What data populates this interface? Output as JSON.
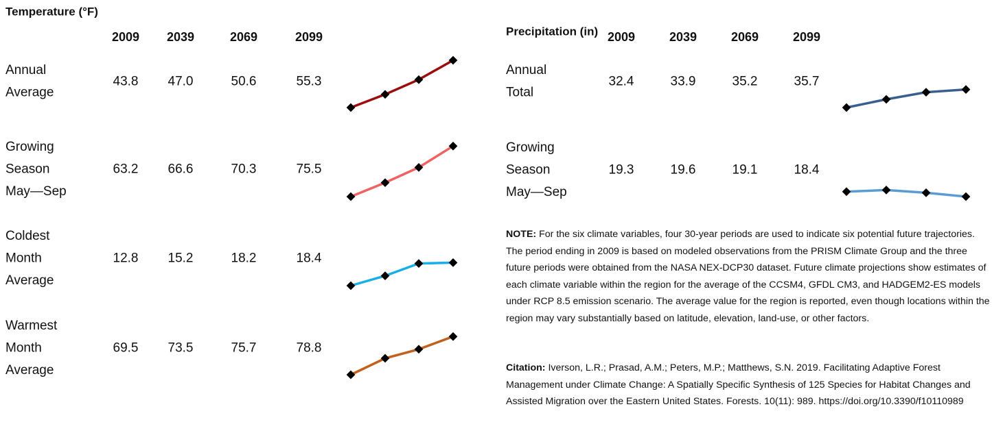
{
  "panels": [
    {
      "title": "Temperature (°F)",
      "years": [
        "2009",
        "2039",
        "2069",
        "2099"
      ],
      "rows": [
        {
          "label": [
            "Annual",
            "Average"
          ],
          "values": [
            43.8,
            47.0,
            50.6,
            55.3
          ],
          "value_labels": [
            "43.8",
            "47.0",
            "50.6",
            "55.3"
          ],
          "color": "#9b0d0d"
        },
        {
          "label": [
            "Growing",
            "Season",
            "May—Sep"
          ],
          "values": [
            63.2,
            66.6,
            70.3,
            75.5
          ],
          "value_labels": [
            "63.2",
            "66.6",
            "70.3",
            "75.5"
          ],
          "color": "#f06262"
        },
        {
          "label": [
            "Coldest",
            "Month",
            "Average"
          ],
          "values": [
            12.8,
            15.2,
            18.2,
            18.4
          ],
          "value_labels": [
            "12.8",
            "15.2",
            "18.2",
            "18.4"
          ],
          "color": "#1aaee6"
        },
        {
          "label": [
            "Warmest",
            "Month",
            "Average"
          ],
          "values": [
            69.5,
            73.5,
            75.7,
            78.8
          ],
          "value_labels": [
            "69.5",
            "73.5",
            "75.7",
            "78.8"
          ],
          "color": "#c2601c"
        }
      ]
    },
    {
      "title": "Precipitation (in)",
      "years": [
        "2009",
        "2039",
        "2069",
        "2099"
      ],
      "rows": [
        {
          "label": [
            "Annual",
            "Total"
          ],
          "values": [
            32.4,
            33.9,
            35.2,
            35.7
          ],
          "value_labels": [
            "32.4",
            "33.9",
            "35.2",
            "35.7"
          ],
          "color": "#3a5f8f"
        },
        {
          "label": [
            "Growing",
            "Season",
            "May—Sep"
          ],
          "values": [
            19.3,
            19.6,
            19.1,
            18.4
          ],
          "value_labels": [
            "19.3",
            "19.6",
            "19.1",
            "18.4"
          ],
          "color": "#5b9bd5"
        }
      ]
    }
  ],
  "note": {
    "label": "NOTE:",
    "text": "For the six climate variables, four 30-year periods are used to indicate six potential future trajectories. The period ending in 2009 is based on modeled observations from the PRISM Climate Group and the three future periods were obtained from the NASA NEX-DCP30 dataset. Future climate projections show estimates of each climate variable within the region for the average of the CCSM4, GFDL CM3, and HADGEM2-ES models under RCP 8.5 emission scenario. The average value for the region is reported, even though locations within the region may vary substantially based on latitude, elevation, land-use, or other factors."
  },
  "citation": {
    "label": "Citation:",
    "text": "Iverson, L.R.; Prasad, A.M.; Peters, M.P.; Matthews, S.N. 2019. Facilitating  Adaptive Forest Management under Climate Change: A Spatially Specific Synthesis of 125 Species for Habitat Changes and Assisted Migration over the Eastern United States. Forests. 10(11): 989. https://doi.org/10.3390/f10110989"
  }
}
